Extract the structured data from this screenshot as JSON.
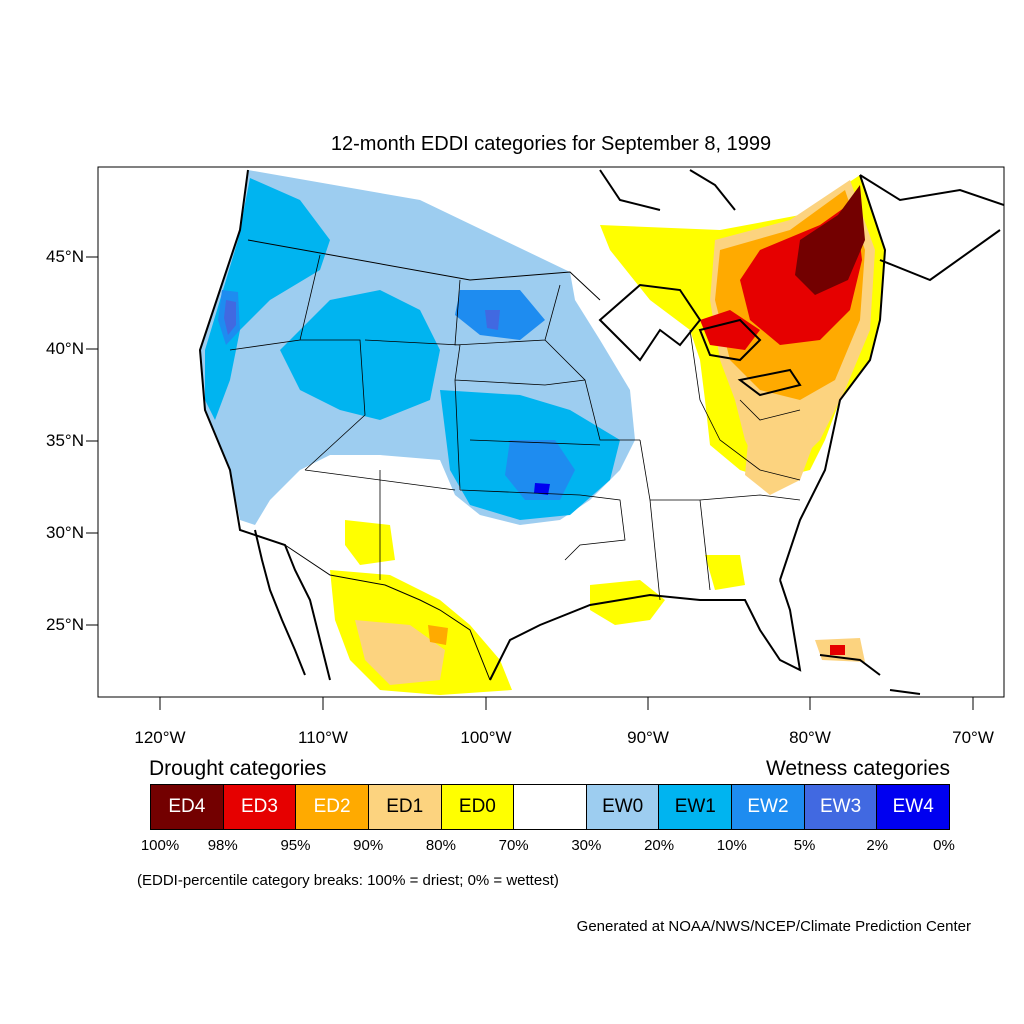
{
  "title": "12-month EDDI categories for September 8, 1999",
  "axes": {
    "latitude_labels": [
      "45°N",
      "40°N",
      "35°N",
      "30°N",
      "25°N"
    ],
    "longitude_labels": [
      "120°W",
      "110°W",
      "100°W",
      "90°W",
      "80°W",
      "70°W"
    ]
  },
  "legend": {
    "drought_heading": "Drought categories",
    "wetness_heading": "Wetness categories",
    "categories": [
      {
        "label": "ED4",
        "color": "#730000",
        "text_color": "#ffffff"
      },
      {
        "label": "ED3",
        "color": "#e60000",
        "text_color": "#ffffff"
      },
      {
        "label": "ED2",
        "color": "#ffaa00",
        "text_color": "#ffffff"
      },
      {
        "label": "ED1",
        "color": "#fcd37f",
        "text_color": "#000000"
      },
      {
        "label": "ED0",
        "color": "#ffff00",
        "text_color": "#000000"
      },
      {
        "label": "",
        "color": "#ffffff",
        "text_color": "#000000"
      },
      {
        "label": "EW0",
        "color": "#9dcdf0",
        "text_color": "#000000"
      },
      {
        "label": "EW1",
        "color": "#00b4f0",
        "text_color": "#000000"
      },
      {
        "label": "EW2",
        "color": "#1e8cf0",
        "text_color": "#ffffff"
      },
      {
        "label": "EW3",
        "color": "#4169e1",
        "text_color": "#ffffff"
      },
      {
        "label": "EW4",
        "color": "#0000f0",
        "text_color": "#ffffff"
      }
    ],
    "breaks": [
      "100%",
      "98%",
      "95%",
      "90%",
      "80%",
      "70%",
      "30%",
      "20%",
      "10%",
      "5%",
      "2%",
      "0%"
    ]
  },
  "note": "(EDDI-percentile category breaks: 100% = driest; 0% = wettest)",
  "credit": "Generated at NOAA/NWS/NCEP/Climate Prediction Center"
}
